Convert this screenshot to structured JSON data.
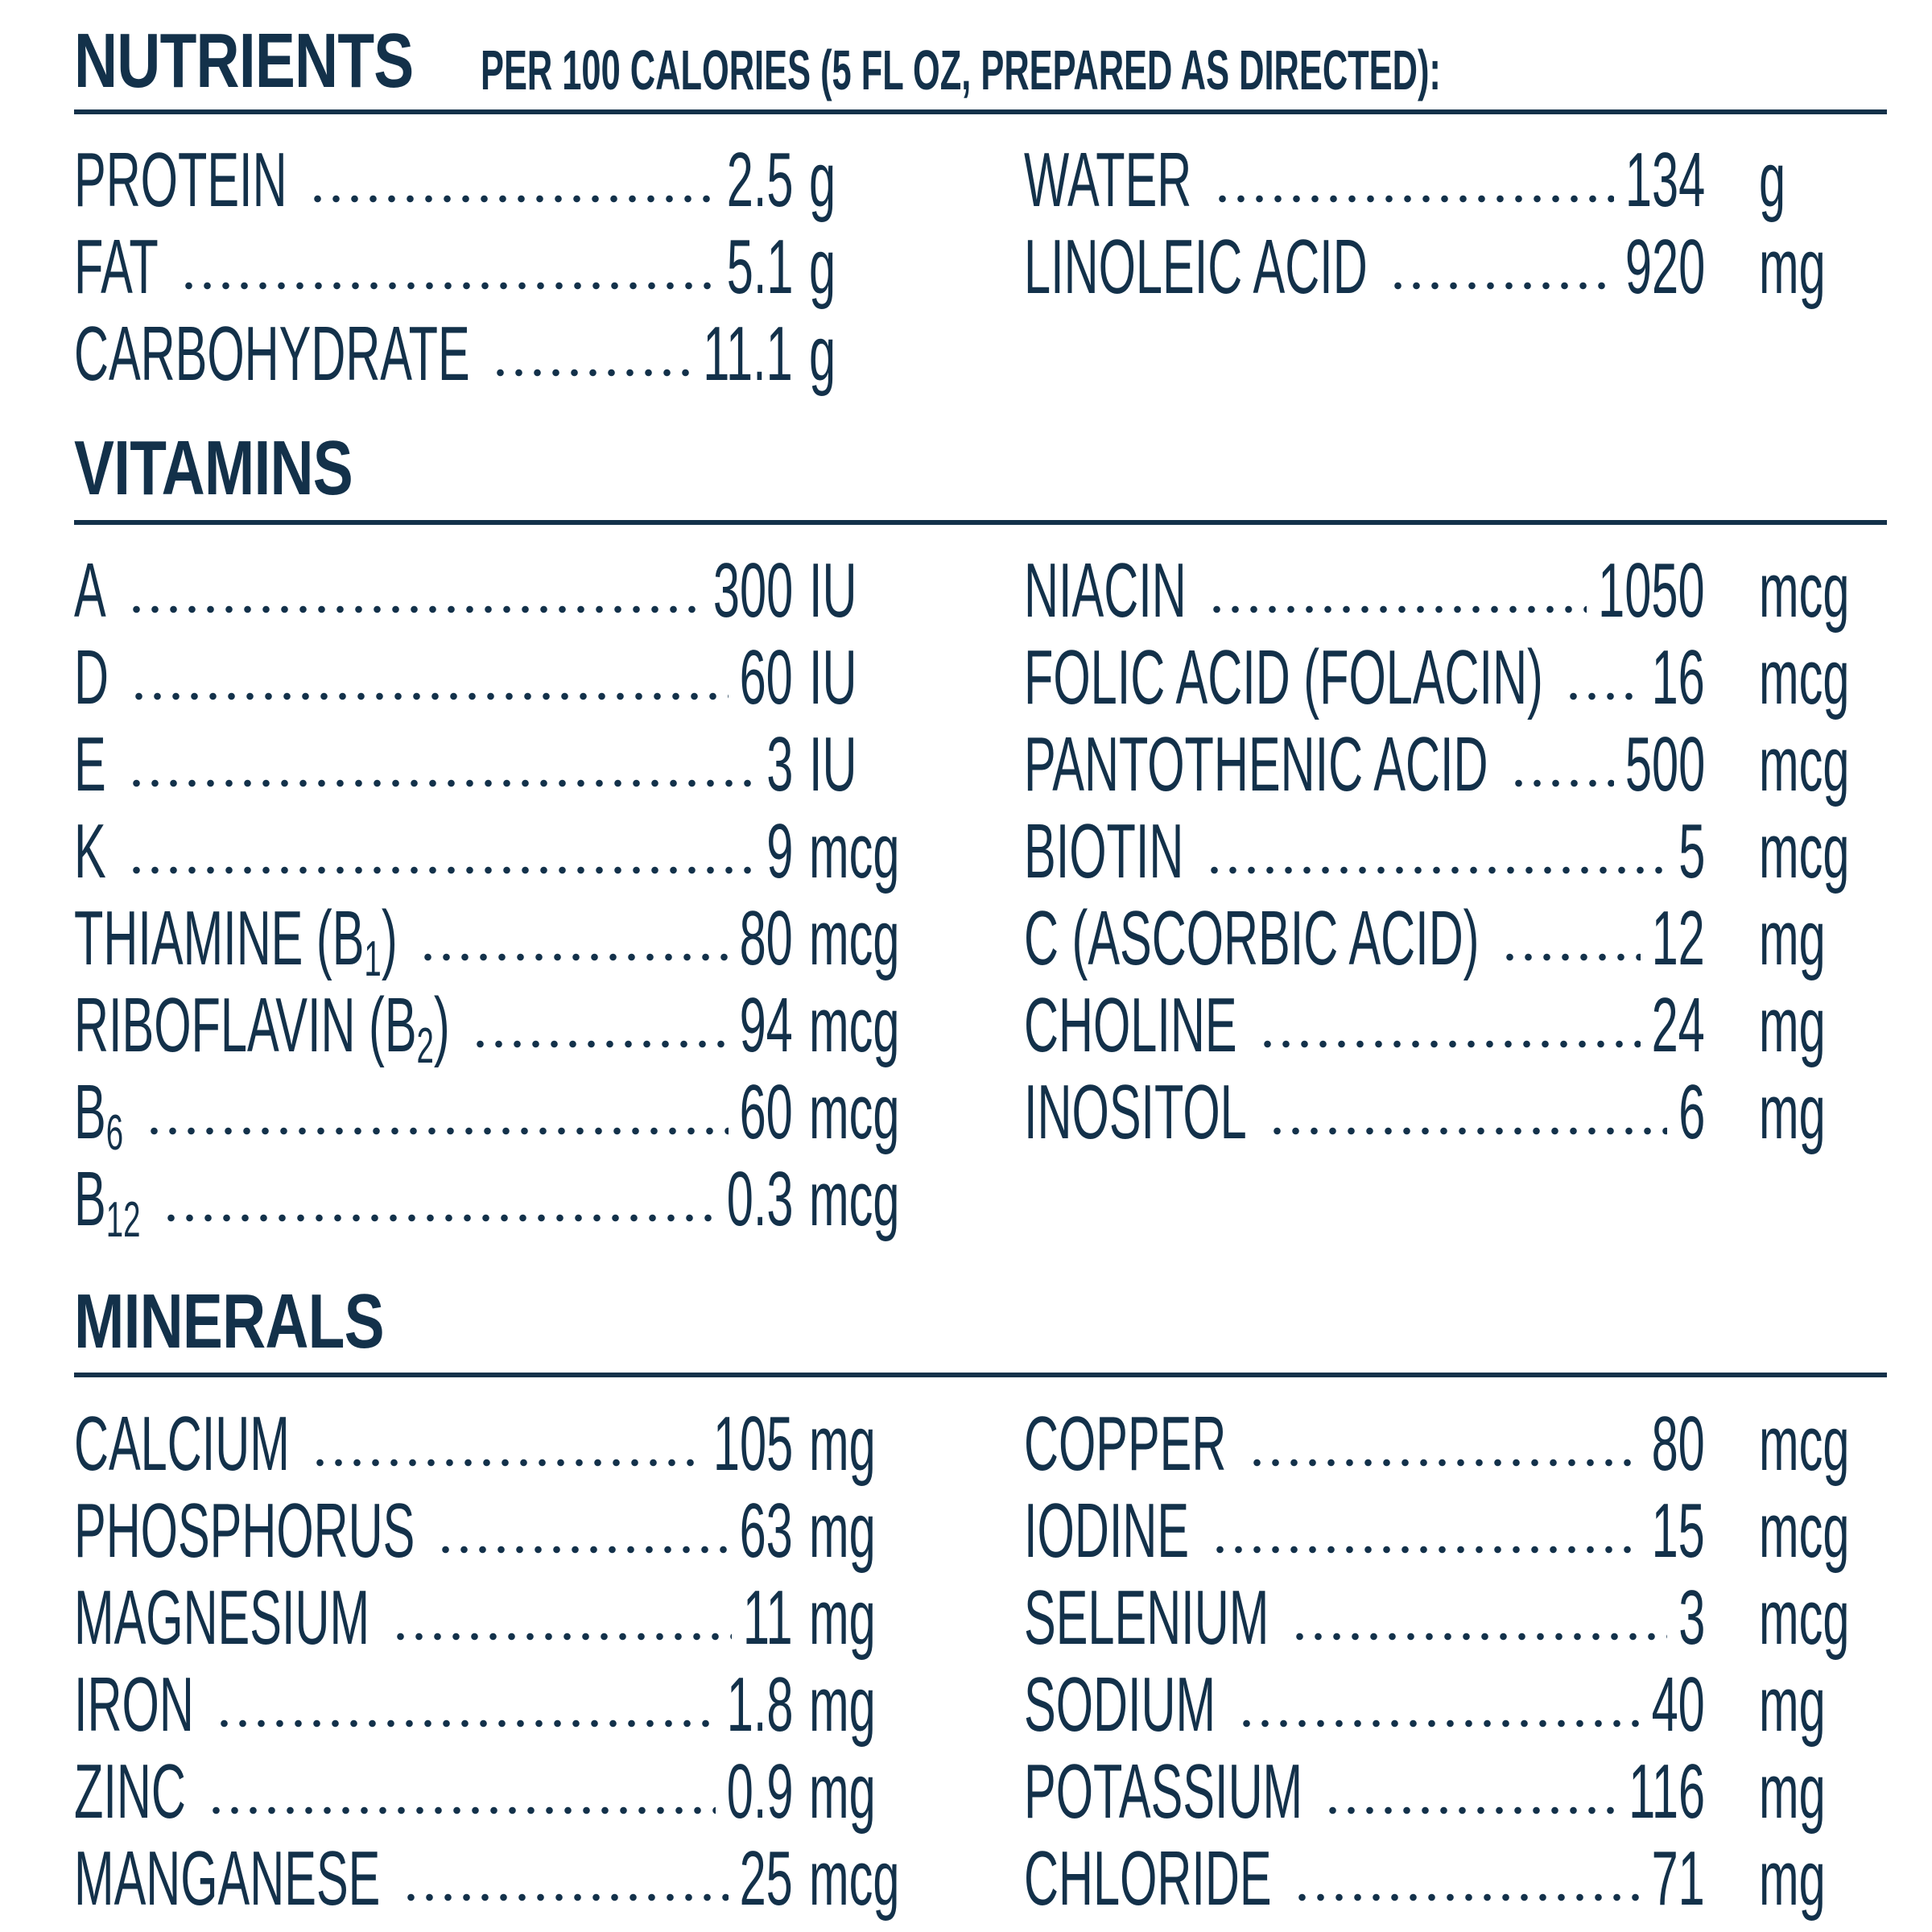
{
  "colors": {
    "ink": "#13314a",
    "background": "#ffffff"
  },
  "nutrients": {
    "title": "NUTRIENTS",
    "subtitle": "PER 100 CALORIES (5 FL OZ, PREPARED AS DIRECTED):",
    "left": [
      {
        "name": "PROTEIN",
        "value": "2.5",
        "unit": "g"
      },
      {
        "name": "FAT",
        "value": "5.1",
        "unit": "g"
      },
      {
        "name": "CARBOHYDRATE",
        "value": "11.1",
        "unit": "g"
      }
    ],
    "right": [
      {
        "name": "WATER",
        "value": "134",
        "unit": "g"
      },
      {
        "name": "LINOLEIC ACID",
        "value": "920",
        "unit": "mg"
      }
    ]
  },
  "vitamins": {
    "title": "VITAMINS",
    "left": [
      {
        "name": "A",
        "value": "300",
        "unit": "IU"
      },
      {
        "name": "D",
        "value": "60",
        "unit": "IU"
      },
      {
        "name": "E",
        "value": "3",
        "unit": "IU"
      },
      {
        "name": "K",
        "value": "9",
        "unit": "mcg"
      },
      {
        "name": "THIAMINE (B",
        "name_sub": "1",
        "name_end": ")",
        "value": "80",
        "unit": "mcg"
      },
      {
        "name": "RIBOFLAVIN (B",
        "name_sub": "2",
        "name_end": ")",
        "value": "94",
        "unit": "mcg"
      },
      {
        "name": "B",
        "name_sub": "6",
        "name_end": "",
        "value": "60",
        "unit": "mcg"
      },
      {
        "name": "B",
        "name_sub": "12",
        "name_end": "",
        "value": "0.3",
        "unit": "mcg"
      }
    ],
    "right": [
      {
        "name": "NIACIN",
        "value": "1050",
        "unit": "mcg"
      },
      {
        "name": "FOLIC ACID (FOLACIN)",
        "value": "16",
        "unit": "mcg"
      },
      {
        "name": "PANTOTHENIC ACID",
        "value": "500",
        "unit": "mcg"
      },
      {
        "name": "BIOTIN",
        "value": "5",
        "unit": "mcg"
      },
      {
        "name": "C (ASCORBIC ACID)",
        "value": "12",
        "unit": "mg"
      },
      {
        "name": "CHOLINE",
        "value": "24",
        "unit": "mg"
      },
      {
        "name": "INOSITOL",
        "value": "6",
        "unit": "mg"
      }
    ]
  },
  "minerals": {
    "title": "MINERALS",
    "left": [
      {
        "name": "CALCIUM",
        "value": "105",
        "unit": "mg"
      },
      {
        "name": "PHOSPHORUS",
        "value": "63",
        "unit": "mg"
      },
      {
        "name": "MAGNESIUM",
        "value": "11",
        "unit": "mg"
      },
      {
        "name": "IRON",
        "value": "1.8",
        "unit": "mg"
      },
      {
        "name": "ZINC",
        "value": "0.9",
        "unit": "mg"
      },
      {
        "name": "MANGANESE",
        "value": "25",
        "unit": "mcg"
      }
    ],
    "right": [
      {
        "name": "COPPER",
        "value": "80",
        "unit": "mcg"
      },
      {
        "name": "IODINE",
        "value": "15",
        "unit": "mcg"
      },
      {
        "name": "SELENIUM",
        "value": "3",
        "unit": "mcg"
      },
      {
        "name": "SODIUM",
        "value": "40",
        "unit": "mg"
      },
      {
        "name": "POTASSIUM",
        "value": "116",
        "unit": "mg"
      },
      {
        "name": "CHLORIDE",
        "value": "71",
        "unit": "mg"
      }
    ]
  }
}
